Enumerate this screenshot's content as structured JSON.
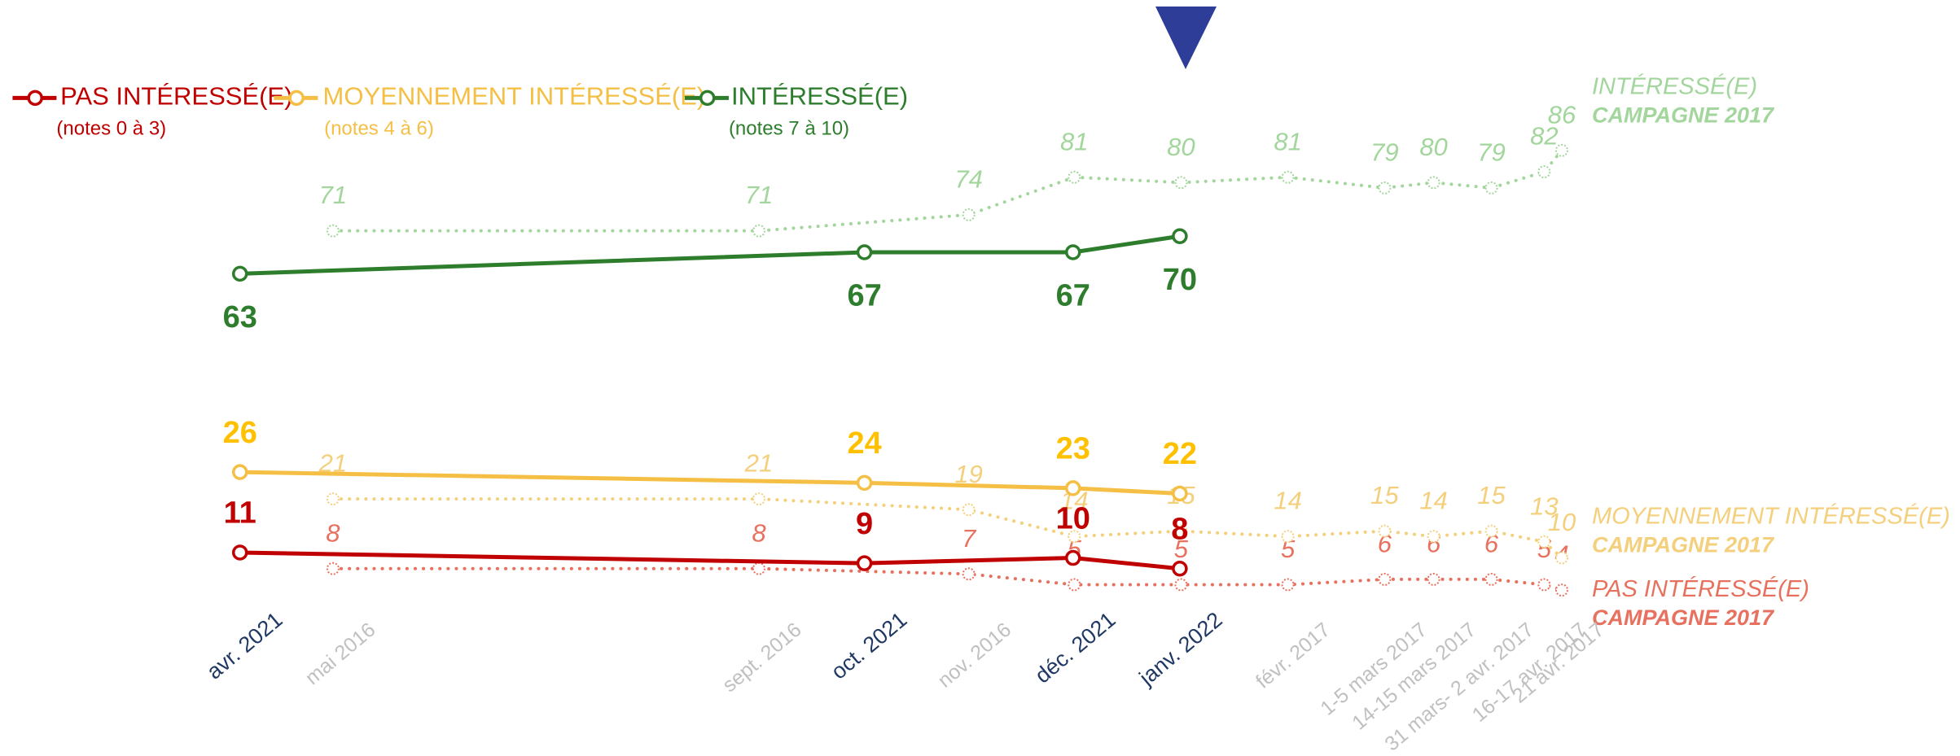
{
  "chart_data": [
    {
      "type": "line",
      "categories": [
        "avr. 2021",
        "oct. 2021",
        "déc. 2021",
        "janv. 2022"
      ],
      "series": [
        {
          "name": "PAS INTÉRESSÉ(E)",
          "note": "(notes 0 à 3)",
          "color": "#c00000",
          "values": [
            11,
            9,
            10,
            8
          ]
        },
        {
          "name": "MOYENNEMENT INTÉRESSÉ(E)",
          "note": "(notes 4 à 6)",
          "color": "#f4bf44",
          "values": [
            26,
            24,
            23,
            22
          ]
        },
        {
          "name": "INTÉRESSÉ(E)",
          "note": "(notes 7 à 10)",
          "color": "#2d7d2d",
          "values": [
            63,
            67,
            67,
            70
          ]
        }
      ]
    },
    {
      "type": "line",
      "line_style": "dotted",
      "campaign_label": "CAMPAGNE 2017",
      "categories": [
        "mai 2016",
        "sept. 2016",
        "nov. 2016",
        null,
        null,
        "févr. 2017",
        "1-5 mars 2017",
        "14-15 mars 2017",
        "31 mars- 2 avr. 2017",
        "16-17 avr. 2017",
        "21 avr. 2017"
      ],
      "series": [
        {
          "name": "PAS INTÉRESSÉ(E)",
          "color": "#e8705e",
          "values": [
            8,
            8,
            7,
            5,
            5,
            5,
            6,
            6,
            6,
            5,
            4
          ]
        },
        {
          "name": "MOYENNEMENT INTÉRESSÉ(E)",
          "color": "#f4cf7c",
          "values": [
            21,
            21,
            19,
            14,
            15,
            14,
            15,
            14,
            15,
            13,
            10
          ]
        },
        {
          "name": "INTÉRESSÉ(E)",
          "color": "#a3d69c",
          "values": [
            71,
            71,
            74,
            81,
            80,
            81,
            79,
            80,
            79,
            82,
            86
          ]
        }
      ]
    }
  ]
}
